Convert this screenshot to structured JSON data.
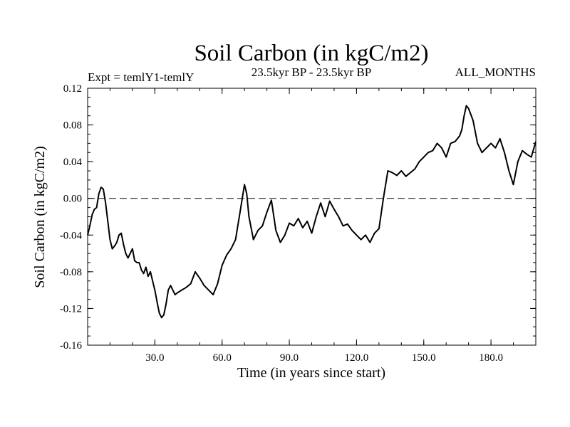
{
  "chart_data": {
    "type": "line",
    "title": "Soil Carbon (in kgC/m2)",
    "subtitle_left": "Expt = temlY1-temlY",
    "subtitle_center": "23.5kyr BP - 23.5kyr BP",
    "subtitle_right": "ALL_MONTHS",
    "xlabel": "Time (in years since start)",
    "ylabel": "Soil Carbon (in kgC/m2)",
    "xlim": [
      0,
      200
    ],
    "ylim": [
      -0.16,
      0.12
    ],
    "xticks": [
      {
        "value": 30,
        "label": "30.0"
      },
      {
        "value": 60,
        "label": "60.0"
      },
      {
        "value": 90,
        "label": "90.0"
      },
      {
        "value": 120,
        "label": "120.0"
      },
      {
        "value": 150,
        "label": "150.0"
      },
      {
        "value": 180,
        "label": "180.0"
      }
    ],
    "yticks": [
      {
        "value": 0.12,
        "label": "0.12"
      },
      {
        "value": 0.08,
        "label": "0.08"
      },
      {
        "value": 0.04,
        "label": "0.04"
      },
      {
        "value": 0.0,
        "label": "0.00"
      },
      {
        "value": -0.04,
        "label": "-0.04"
      },
      {
        "value": -0.08,
        "label": "-0.08"
      },
      {
        "value": -0.12,
        "label": "-0.12"
      },
      {
        "value": -0.16,
        "label": "-0.16"
      }
    ],
    "reference_line": {
      "y": 0.0,
      "style": "dashed"
    },
    "series": [
      {
        "name": "Soil Carbon",
        "x": [
          0,
          1,
          2,
          3,
          4,
          5,
          6,
          7,
          8,
          9,
          10,
          11,
          12,
          13,
          14,
          15,
          16,
          17,
          18,
          19,
          20,
          21,
          22,
          23,
          24,
          25,
          26,
          27,
          28,
          29,
          30,
          31,
          32,
          33,
          34,
          35,
          36,
          37,
          38,
          39,
          40,
          42,
          44,
          46,
          48,
          50,
          52,
          54,
          56,
          58,
          60,
          62,
          64,
          66,
          68,
          69,
          70,
          71,
          72,
          74,
          76,
          78,
          80,
          82,
          84,
          86,
          88,
          90,
          92,
          94,
          96,
          98,
          100,
          102,
          104,
          106,
          108,
          110,
          112,
          114,
          116,
          118,
          120,
          122,
          124,
          126,
          128,
          130,
          132,
          134,
          136,
          138,
          140,
          142,
          144,
          146,
          148,
          150,
          152,
          154,
          156,
          158,
          160,
          162,
          164,
          166,
          167,
          168,
          169,
          170,
          172,
          174,
          176,
          178,
          180,
          182,
          184,
          186,
          188,
          190,
          192,
          194,
          196,
          198,
          200
        ],
        "y": [
          -0.04,
          -0.03,
          -0.018,
          -0.012,
          -0.01,
          0.005,
          0.012,
          0.01,
          -0.005,
          -0.025,
          -0.045,
          -0.055,
          -0.052,
          -0.048,
          -0.04,
          -0.038,
          -0.05,
          -0.06,
          -0.065,
          -0.06,
          -0.055,
          -0.068,
          -0.07,
          -0.07,
          -0.078,
          -0.082,
          -0.075,
          -0.085,
          -0.08,
          -0.09,
          -0.1,
          -0.113,
          -0.125,
          -0.13,
          -0.127,
          -0.115,
          -0.1,
          -0.095,
          -0.1,
          -0.105,
          -0.103,
          -0.1,
          -0.097,
          -0.093,
          -0.08,
          -0.087,
          -0.095,
          -0.1,
          -0.105,
          -0.093,
          -0.073,
          -0.062,
          -0.055,
          -0.045,
          -0.015,
          0.0,
          0.015,
          0.005,
          -0.02,
          -0.045,
          -0.035,
          -0.03,
          -0.015,
          -0.002,
          -0.035,
          -0.048,
          -0.04,
          -0.027,
          -0.03,
          -0.022,
          -0.032,
          -0.025,
          -0.038,
          -0.02,
          -0.005,
          -0.02,
          -0.003,
          -0.012,
          -0.02,
          -0.03,
          -0.028,
          -0.035,
          -0.04,
          -0.045,
          -0.04,
          -0.048,
          -0.038,
          -0.033,
          0.0,
          0.03,
          0.028,
          0.025,
          0.03,
          0.024,
          0.028,
          0.032,
          0.04,
          0.045,
          0.05,
          0.052,
          0.06,
          0.055,
          0.045,
          0.06,
          0.062,
          0.068,
          0.075,
          0.09,
          0.101,
          0.098,
          0.085,
          0.06,
          0.05,
          0.055,
          0.06,
          0.055,
          0.065,
          0.05,
          0.03,
          0.015,
          0.04,
          0.052,
          0.048,
          0.045,
          0.062
        ]
      }
    ]
  }
}
